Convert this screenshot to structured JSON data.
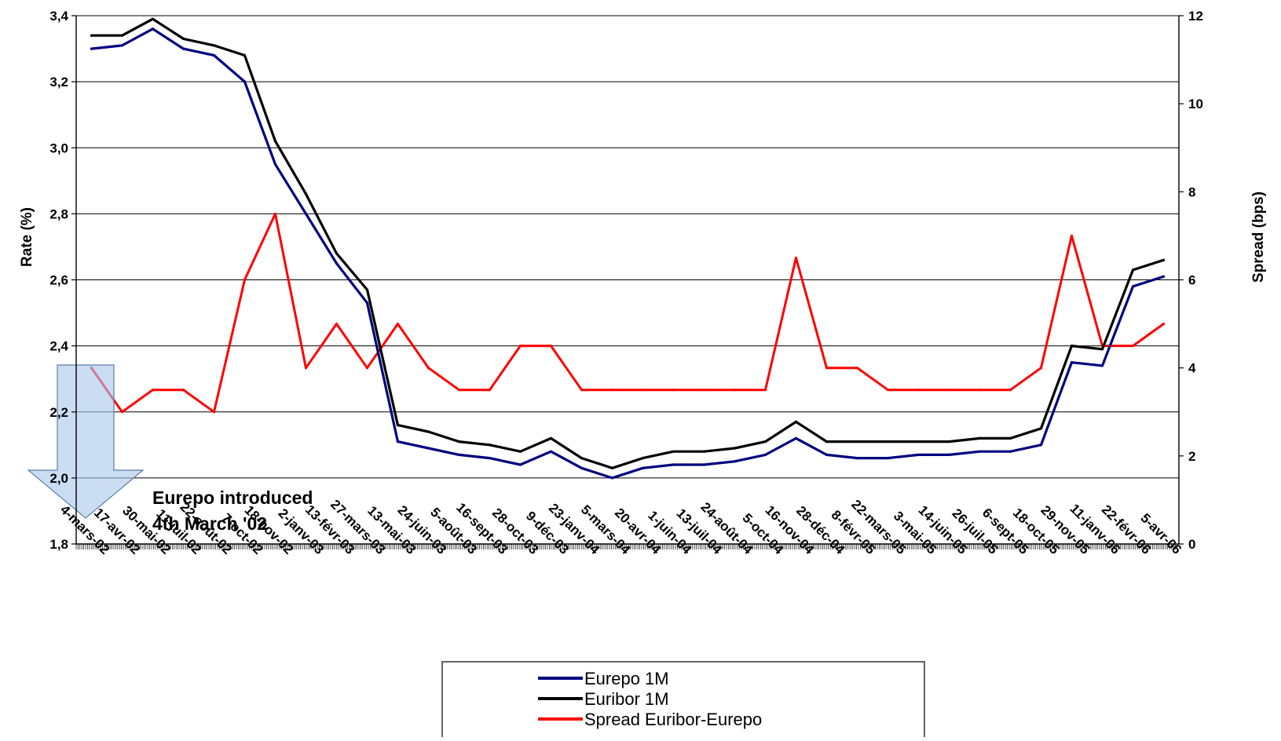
{
  "chart_data": {
    "type": "line",
    "title": "",
    "ylabel": "Rate (%)",
    "y2label": "Spread (bps)",
    "xlabel": "",
    "ylim": [
      1.8,
      3.4
    ],
    "y2lim": [
      0,
      12
    ],
    "yticks": [
      "1,8",
      "2,0",
      "2,2",
      "2,4",
      "2,6",
      "2,8",
      "3,0",
      "3,2",
      "3,4"
    ],
    "y2ticks": [
      "0",
      "2",
      "4",
      "6",
      "8",
      "10",
      "12"
    ],
    "grid": "horizontal major gridlines on",
    "legend_position": "bottom",
    "categories": [
      "4-mars-02",
      "17-avr-02",
      "30-mai-02",
      "11-juil-02",
      "22-août-02",
      "7-oct-02",
      "18-nov-02",
      "2-janv-03",
      "13-févr-03",
      "27-mars-03",
      "13-mai-03",
      "24-juin-03",
      "5-août-03",
      "16-sept-03",
      "28-oct-03",
      "9-déc-03",
      "23-janv-04",
      "5-mars-04",
      "20-avr-04",
      "1-juin-04",
      "13-juil-04",
      "24-août-04",
      "5-oct-04",
      "16-nov-04",
      "28-déc-04",
      "8-févr-05",
      "22-mars-05",
      "3-mai-05",
      "14-juin-05",
      "26-juil-05",
      "6-sept-05",
      "18-oct-05",
      "29-nov-05",
      "11-janv-06",
      "22-févr-06",
      "5-avr-06"
    ],
    "series": [
      {
        "name": "Eurepo 1M",
        "color": "#000080",
        "axis": "left",
        "values": [
          3.3,
          3.31,
          3.36,
          3.3,
          3.28,
          3.2,
          2.95,
          2.8,
          2.65,
          2.53,
          2.11,
          2.09,
          2.07,
          2.06,
          2.04,
          2.08,
          2.03,
          2.0,
          2.03,
          2.04,
          2.04,
          2.05,
          2.07,
          2.12,
          2.07,
          2.06,
          2.06,
          2.07,
          2.07,
          2.08,
          2.08,
          2.1,
          2.35,
          2.34,
          2.58,
          2.61
        ]
      },
      {
        "name": "Euribor 1M",
        "color": "#000000",
        "axis": "left",
        "values": [
          3.34,
          3.34,
          3.39,
          3.33,
          3.31,
          3.28,
          3.02,
          2.86,
          2.68,
          2.57,
          2.16,
          2.14,
          2.11,
          2.1,
          2.08,
          2.12,
          2.06,
          2.03,
          2.06,
          2.08,
          2.08,
          2.09,
          2.11,
          2.17,
          2.11,
          2.11,
          2.11,
          2.11,
          2.11,
          2.12,
          2.12,
          2.15,
          2.4,
          2.39,
          2.63,
          2.66
        ]
      },
      {
        "name": "Spread Euribor-Eurepo",
        "color": "#ff0000",
        "axis": "right",
        "values": [
          4.0,
          3.0,
          3.5,
          3.5,
          3.0,
          6.0,
          7.5,
          4.0,
          5.0,
          4.0,
          5.0,
          4.0,
          3.5,
          3.5,
          4.5,
          4.5,
          3.5,
          3.5,
          3.5,
          3.5,
          3.5,
          3.5,
          3.5,
          6.5,
          4.0,
          4.0,
          3.5,
          3.5,
          3.5,
          3.5,
          3.5,
          4.0,
          7.0,
          4.5,
          4.5,
          5.0
        ]
      }
    ],
    "annotation": {
      "line1": "Eurepo introduced",
      "line2": "4th March '02"
    }
  }
}
